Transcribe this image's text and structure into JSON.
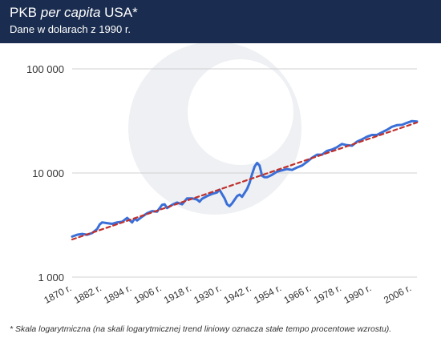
{
  "header": {
    "title_prefix": "PKB ",
    "title_italic": "per capita",
    "title_suffix": " USA*",
    "subtitle": "Dane w dolarach z 1990 r."
  },
  "footnote": "* Skala logarytmiczna (na skali logarytmicznej trend liniowy oznacza stałe tempo procentowe wzrostu).",
  "colors": {
    "header_bg": "#1a2c4f",
    "series_line": "#3a6fd8",
    "trend_line": "#c0302c",
    "grid": "#d0d0d0",
    "watermark": "#eef0f3"
  },
  "chart_data": {
    "type": "line",
    "title": "PKB per capita USA*",
    "subtitle": "Dane w dolarach z 1990 r.",
    "xlabel": "",
    "ylabel": "",
    "yscale": "log",
    "xlim": [
      1870,
      2008
    ],
    "ylim": [
      1000,
      100000
    ],
    "grid": "horizontal",
    "yticks": [
      {
        "value": 1000,
        "label": "1 000"
      },
      {
        "value": 10000,
        "label": "10 000"
      },
      {
        "value": 100000,
        "label": "100 000"
      }
    ],
    "xticks": [
      {
        "value": 1870,
        "label": "1870 r."
      },
      {
        "value": 1882,
        "label": "1882 r."
      },
      {
        "value": 1894,
        "label": "1894 r."
      },
      {
        "value": 1906,
        "label": "1906 r."
      },
      {
        "value": 1918,
        "label": "1918 r."
      },
      {
        "value": 1930,
        "label": "1930 r."
      },
      {
        "value": 1942,
        "label": "1942 r."
      },
      {
        "value": 1954,
        "label": "1954 r."
      },
      {
        "value": 1966,
        "label": "1966 r."
      },
      {
        "value": 1978,
        "label": "1978 r."
      },
      {
        "value": 1990,
        "label": "1990 r."
      },
      {
        "value": 2006,
        "label": "2006 r."
      }
    ],
    "series": [
      {
        "style": "solid",
        "x": [
          1870,
          1872,
          1874,
          1876,
          1878,
          1880,
          1881,
          1882,
          1884,
          1886,
          1888,
          1890,
          1892,
          1894,
          1895,
          1896,
          1898,
          1900,
          1902,
          1904,
          1906,
          1907,
          1908,
          1910,
          1912,
          1914,
          1916,
          1918,
          1920,
          1921,
          1922,
          1924,
          1926,
          1928,
          1929,
          1930,
          1931,
          1932,
          1933,
          1934,
          1936,
          1937,
          1938,
          1940,
          1941,
          1942,
          1943,
          1944,
          1945,
          1946,
          1947,
          1948,
          1950,
          1952,
          1954,
          1956,
          1958,
          1960,
          1962,
          1964,
          1966,
          1968,
          1970,
          1972,
          1974,
          1976,
          1978,
          1980,
          1982,
          1984,
          1986,
          1988,
          1990,
          1992,
          1994,
          1996,
          1998,
          2000,
          2002,
          2004,
          2006,
          2008
        ],
        "y": [
          2450,
          2550,
          2600,
          2550,
          2650,
          2900,
          3200,
          3350,
          3300,
          3250,
          3350,
          3400,
          3700,
          3350,
          3650,
          3500,
          3800,
          4100,
          4300,
          4250,
          4950,
          5000,
          4600,
          4950,
          5200,
          5000,
          5700,
          5700,
          5550,
          5300,
          5650,
          6000,
          6300,
          6500,
          6900,
          6250,
          5700,
          5000,
          4800,
          5100,
          6000,
          6200,
          5900,
          7000,
          8000,
          9700,
          11500,
          12500,
          11800,
          9400,
          9100,
          9100,
          9600,
          10300,
          10600,
          10900,
          10700,
          11300,
          11800,
          12800,
          14000,
          15000,
          15000,
          16300,
          16800,
          17700,
          19000,
          18500,
          18300,
          20000,
          21000,
          22300,
          23200,
          23200,
          24600,
          26000,
          27800,
          28800,
          29000,
          30300,
          31500,
          31200
        ]
      },
      {
        "style": "dashed",
        "x": [
          1870,
          2008
        ],
        "y": [
          2300,
          30500
        ]
      }
    ]
  }
}
